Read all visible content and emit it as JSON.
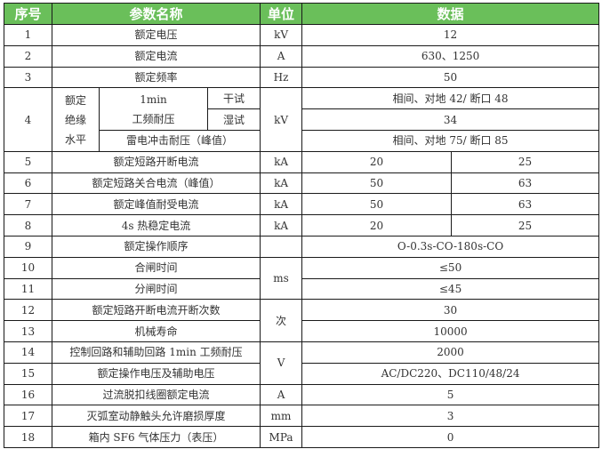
{
  "header": {
    "no": "序号",
    "name": "参数名称",
    "unit": "单位",
    "value": "数据"
  },
  "colors": {
    "header_bg": "#6abf5a",
    "header_text": "#ffffff"
  },
  "rows": [
    {
      "no": "1",
      "name": "额定电压",
      "unit": "kV",
      "value": "12"
    },
    {
      "no": "2",
      "name": "额定电流",
      "unit": "A",
      "value": "630、1250"
    },
    {
      "no": "3",
      "name": "额定频率",
      "unit": "Hz",
      "value": "50"
    },
    {
      "no": "4",
      "group": "额定绝缘水平",
      "group_lines": [
        "额定",
        "绝缘",
        "水平"
      ],
      "sub1_line1": "1min",
      "sub1_line2": "工频耐压",
      "dry": "干试",
      "wet": "湿试",
      "lightning": "雷电冲击耐压（峰值）",
      "unit": "kV",
      "dry_value": "相间、对地 42/ 断口 48",
      "wet_value": "34",
      "lightning_value": "相间、对地 75/ 断口 85"
    },
    {
      "no": "5",
      "name": "额定短路开断电流",
      "unit": "kA",
      "value_a": "20",
      "value_b": "25"
    },
    {
      "no": "6",
      "name": "额定短路关合电流（峰值）",
      "unit": "kA",
      "value_a": "50",
      "value_b": "63"
    },
    {
      "no": "7",
      "name": "额定峰值耐受电流",
      "unit": "kA",
      "value_a": "50",
      "value_b": "63"
    },
    {
      "no": "8",
      "name": "4s 热稳定电流",
      "unit": "kA",
      "value_a": "20",
      "value_b": "25"
    },
    {
      "no": "9",
      "name": "额定操作顺序",
      "unit": "",
      "value": "O-0.3s-CO-180s-CO"
    },
    {
      "no": "10",
      "name": "合闸时间",
      "unit": "ms",
      "value": "≤50"
    },
    {
      "no": "11",
      "name": "分闸时间",
      "value": "≤45"
    },
    {
      "no": "12",
      "name": "额定短路开断电流开断次数",
      "unit": "次",
      "value": "30"
    },
    {
      "no": "13",
      "name": "机械寿命",
      "value": "10000"
    },
    {
      "no": "14",
      "name": "控制回路和辅助回路 1min 工频耐压",
      "unit": "V",
      "value": "2000"
    },
    {
      "no": "15",
      "name": "额定操作电压及辅助电压",
      "value": "AC/DC220、DC110/48/24"
    },
    {
      "no": "16",
      "name": "过流脱扣线圈额定电流",
      "unit": "A",
      "value": "5"
    },
    {
      "no": "17",
      "name": "灭弧室动静触头允许磨损厚度",
      "unit": "mm",
      "value": "3"
    },
    {
      "no": "18",
      "name": "箱内 SF6 气体压力（表压）",
      "unit": "MPa",
      "value": "0"
    }
  ]
}
